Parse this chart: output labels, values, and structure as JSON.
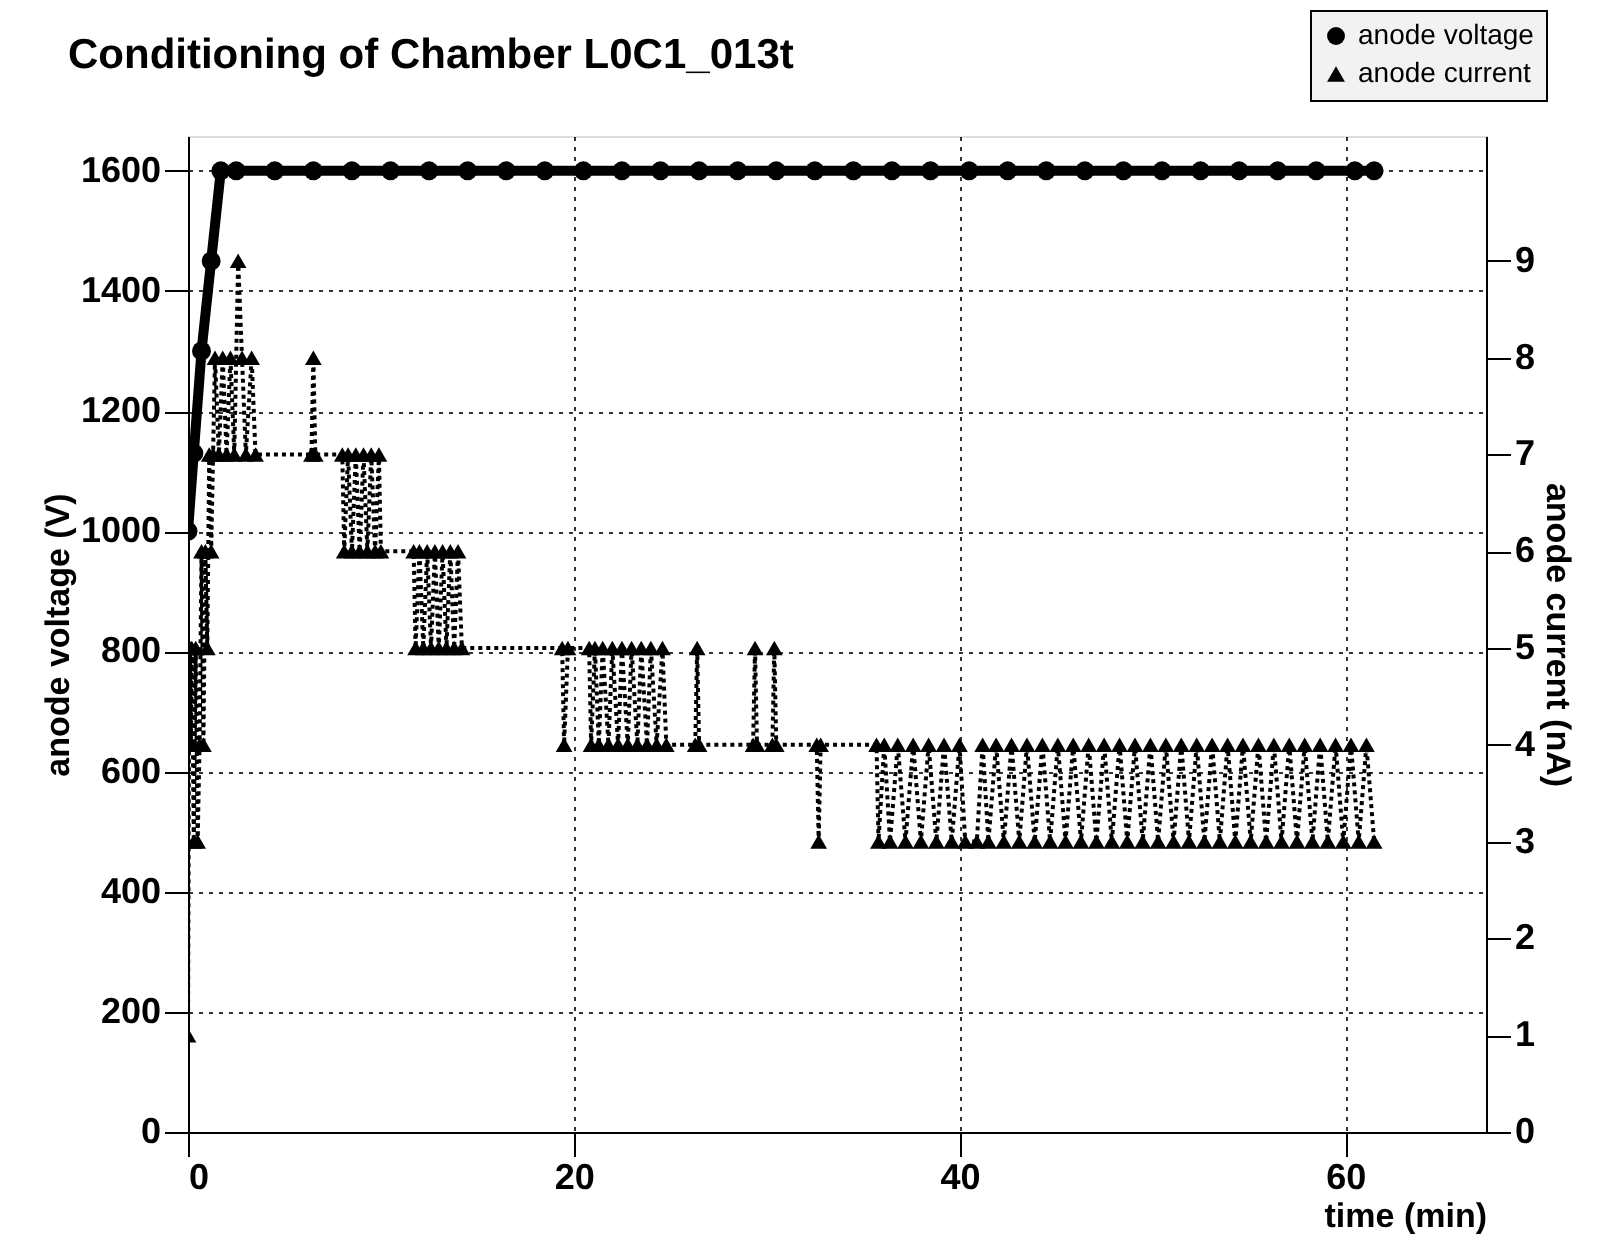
{
  "chart_data": {
    "type": "line",
    "title": "Conditioning of Chamber L0C1_013t",
    "xlabel": "time (min)",
    "ylabel": "anode voltage (V)",
    "y2label": "anode current (nA)",
    "xlim": [
      0,
      67.3
    ],
    "xticks": [
      0,
      20,
      40,
      60
    ],
    "ylim": [
      0,
      1658
    ],
    "yticks": [
      0,
      200,
      400,
      600,
      800,
      1000,
      1200,
      1400,
      1600
    ],
    "y2lim": [
      0,
      10.29
    ],
    "y2ticks": [
      0,
      1,
      2,
      3,
      4,
      5,
      6,
      7,
      8,
      9
    ],
    "grid": true,
    "legend": "top right",
    "series": [
      {
        "name": "anode voltage",
        "color": "#000000",
        "marker": "circle",
        "line_style": "solid",
        "x": [
          0,
          0.3,
          0.7,
          1.2,
          1.7,
          2.5,
          4.5,
          6.5,
          8.5,
          10.5,
          12.5,
          14.5,
          16.5,
          18.5,
          20.5,
          22.5,
          24.5,
          26.5,
          28.5,
          30.5,
          32.5,
          34.5,
          36.5,
          38.5,
          40.5,
          42.5,
          44.5,
          46.5,
          48.5,
          50.5,
          52.5,
          54.5,
          56.5,
          58.5,
          60.5,
          61.5
        ],
        "values": [
          1000,
          1130,
          1300,
          1450,
          1600,
          1600,
          1600,
          1600,
          1600,
          1600,
          1600,
          1600,
          1600,
          1600,
          1600,
          1600,
          1600,
          1600,
          1600,
          1600,
          1600,
          1600,
          1600,
          1600,
          1600,
          1600,
          1600,
          1600,
          1600,
          1600,
          1600,
          1600,
          1600,
          1600,
          1600,
          1600
        ]
      },
      {
        "name": "anode current",
        "color": "#000000",
        "marker": "triangle",
        "line_style": "dotted",
        "axis": "y2",
        "x": [
          0,
          0.05,
          0.1,
          0.15,
          0.2,
          0.3,
          0.4,
          0.5,
          0.6,
          0.7,
          0.8,
          0.9,
          1.0,
          1.1,
          1.2,
          1.3,
          1.4,
          1.6,
          1.8,
          2.0,
          2.2,
          2.4,
          2.6,
          2.8,
          3.0,
          3.3,
          3.5,
          6.4,
          6.5,
          6.6,
          8.0,
          8.1,
          8.3,
          8.5,
          8.7,
          8.9,
          9.1,
          9.3,
          9.5,
          9.7,
          9.9,
          10.0,
          11.7,
          11.8,
          12.0,
          12.2,
          12.4,
          12.6,
          12.8,
          13.0,
          13.2,
          13.4,
          13.6,
          13.8,
          14.0,
          14.2,
          19.4,
          19.5,
          19.7,
          20.8,
          20.9,
          21.1,
          21.3,
          21.5,
          21.8,
          22.0,
          22.3,
          22.5,
          22.8,
          23.0,
          23.3,
          23.5,
          23.8,
          24.0,
          24.3,
          24.6,
          24.8,
          26.3,
          26.4,
          26.5,
          29.3,
          29.4,
          29.5,
          30.3,
          30.4,
          30.5,
          32.6,
          32.7,
          32.8,
          35.7,
          35.8,
          36.1,
          36.4,
          36.8,
          37.2,
          37.6,
          38.0,
          38.4,
          38.8,
          39.2,
          39.6,
          40.0,
          40.3,
          40.9,
          41.2,
          41.5,
          41.9,
          42.3,
          42.7,
          43.1,
          43.5,
          43.9,
          44.3,
          44.7,
          45.1,
          45.5,
          45.9,
          46.3,
          46.7,
          47.1,
          47.5,
          47.9,
          48.3,
          48.7,
          49.1,
          49.5,
          49.9,
          50.3,
          50.7,
          51.1,
          51.5,
          51.9,
          52.3,
          52.7,
          53.1,
          53.5,
          53.9,
          54.3,
          54.7,
          55.1,
          55.5,
          55.9,
          56.3,
          56.7,
          57.1,
          57.5,
          57.9,
          58.3,
          58.7,
          59.1,
          59.5,
          59.9,
          60.3,
          60.7,
          61.1,
          61.5
        ],
        "values": [
          1,
          4,
          5,
          4,
          5,
          3,
          5,
          3,
          4,
          6,
          4,
          6,
          5,
          7,
          6,
          7,
          8,
          7,
          8,
          7,
          8,
          7,
          9,
          8,
          7,
          8,
          7,
          7,
          8,
          7,
          7,
          6,
          7,
          6,
          7,
          6,
          7,
          6,
          7,
          6,
          7,
          6,
          6,
          5,
          6,
          5,
          6,
          5,
          6,
          5,
          6,
          5,
          6,
          5,
          6,
          5,
          5,
          4,
          5,
          5,
          4,
          5,
          4,
          5,
          4,
          5,
          4,
          5,
          4,
          5,
          4,
          5,
          4,
          5,
          4,
          5,
          4,
          4,
          5,
          4,
          4,
          5,
          4,
          4,
          5,
          4,
          4,
          3,
          4,
          4,
          3,
          4,
          3,
          4,
          3,
          4,
          3,
          4,
          3,
          4,
          3,
          4,
          3,
          3,
          4,
          3,
          4,
          3,
          4,
          3,
          4,
          3,
          4,
          3,
          4,
          3,
          4,
          3,
          4,
          3,
          4,
          3,
          4,
          3,
          4,
          3,
          4,
          3,
          4,
          3,
          4,
          3,
          4,
          3,
          4,
          3,
          4,
          3,
          4,
          3,
          4,
          3,
          4,
          3,
          4,
          3,
          4,
          3,
          4,
          3,
          4,
          3,
          4,
          3,
          4,
          3
        ]
      }
    ]
  }
}
